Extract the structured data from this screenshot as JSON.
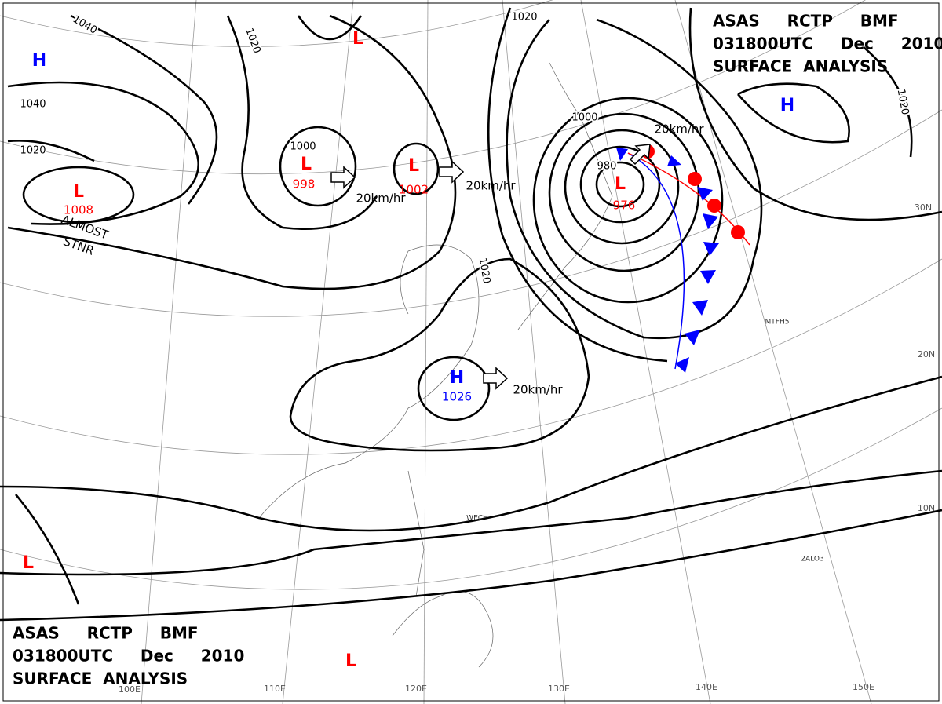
{
  "header": {
    "line1": "ASAS     RCTP     BMF",
    "line2": "031800UTC     Dec     2010",
    "line3": "SURFACE  ANALYSIS"
  },
  "pressure_systems": [
    {
      "label": "H"
    },
    {
      "label": "L"
    },
    {
      "label": "L",
      "pressure": 1008
    },
    {
      "label": "L",
      "pressure": 998
    },
    {
      "label": "L",
      "pressure": 1002
    },
    {
      "label": "L",
      "pressure": 976
    },
    {
      "label": "H",
      "pressure": 1026
    },
    {
      "label": "H"
    },
    {
      "label": "L"
    },
    {
      "label": "L"
    }
  ],
  "isobar_labels": [
    1040,
    1020,
    1040,
    1020,
    1000,
    1020,
    1000,
    980,
    1020,
    1020
  ],
  "movements": [
    "20km/hr",
    "20km/hr",
    "20km/hr",
    "20km/hr"
  ],
  "annotation": [
    "ALMOST",
    "STNR"
  ],
  "longitudes": [
    "100E",
    "110E",
    "120E",
    "130E",
    "140E",
    "150E"
  ],
  "latitudes": [
    "30N",
    "20N",
    "10N"
  ],
  "stations": [
    "WECH",
    "MTFH5",
    "2ALO3"
  ]
}
